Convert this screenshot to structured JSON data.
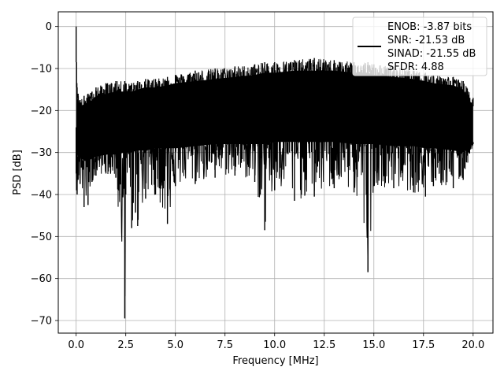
{
  "chart_data": {
    "type": "line",
    "title": "",
    "xlabel": "Frequency [MHz]",
    "ylabel": "PSD [dB]",
    "xlim": [
      -0.9,
      21.0
    ],
    "ylim": [
      -73.0,
      3.5
    ],
    "xticks": [
      "0.0",
      "2.5",
      "5.0",
      "7.5",
      "10.0",
      "12.5",
      "15.0",
      "17.5",
      "20.0"
    ],
    "yticks": [
      "0",
      "−10",
      "−20",
      "−30",
      "−40",
      "−50",
      "−60",
      "−70"
    ],
    "grid": true,
    "legend_position": "top-right",
    "legend_lines": [
      "ENOB: -3.87 bits",
      "SNR: -21.53 dB",
      "SINAD: -21.55 dB",
      "SFDR: 4.88"
    ],
    "series": [
      {
        "color": "#000000",
        "x": [
          0.0,
          0.02,
          0.05,
          0.1,
          0.2,
          0.4,
          0.6,
          0.8,
          1.0,
          1.5,
          2.0,
          2.45,
          2.5,
          2.8,
          3.1,
          3.5,
          4.0,
          4.6,
          5.0,
          6.0,
          7.0,
          8.0,
          9.0,
          9.5,
          10.0,
          11.0,
          12.0,
          13.0,
          14.0,
          14.7,
          15.0,
          16.0,
          17.0,
          17.6,
          18.0,
          19.0,
          19.5,
          20.0
        ],
        "upper": [
          0.0,
          -8.5,
          -14.5,
          -16.0,
          -17.5,
          -16.5,
          -16.0,
          -15.5,
          -14.5,
          -13.5,
          -13.0,
          -13.0,
          -13.5,
          -13.5,
          -13.0,
          -12.5,
          -12.5,
          -12.0,
          -11.5,
          -10.5,
          -10.0,
          -9.5,
          -9.0,
          -8.5,
          -8.5,
          -8.0,
          -7.5,
          -8.0,
          -8.5,
          -8.5,
          -9.0,
          -9.5,
          -10.5,
          -11.0,
          -11.5,
          -12.0,
          -13.0,
          -17.0
        ],
        "lower": [
          -35.0,
          -39.0,
          -40.0,
          -36.5,
          -37.5,
          -43.0,
          -42.5,
          -37.0,
          -35.5,
          -35.0,
          -36.0,
          -69.5,
          -40.0,
          -48.0,
          -47.5,
          -41.0,
          -40.0,
          -47.0,
          -38.0,
          -37.5,
          -36.0,
          -35.5,
          -37.0,
          -48.5,
          -39.0,
          -41.5,
          -40.5,
          -38.5,
          -39.5,
          -58.5,
          -38.0,
          -38.5,
          -39.5,
          -40.5,
          -38.0,
          -38.5,
          -36.5,
          -28.0
        ],
        "band_top": [
          -8.5,
          -14.5,
          -17.0,
          -18.0,
          -19.0,
          -18.5,
          -18.0,
          -17.5,
          -16.5,
          -16.0,
          -15.5,
          -15.5,
          -15.5,
          -15.5,
          -15.0,
          -14.5,
          -14.5,
          -14.0,
          -13.5,
          -13.0,
          -12.5,
          -12.0,
          -11.5,
          -11.0,
          -11.0,
          -10.5,
          -10.5,
          -10.5,
          -11.0,
          -11.0,
          -11.5,
          -12.0,
          -12.5,
          -13.0,
          -13.5,
          -14.0,
          -15.0,
          -19.0
        ],
        "band_bottom": [
          -24.0,
          -27.0,
          -30.0,
          -31.0,
          -31.0,
          -32.0,
          -32.0,
          -31.5,
          -31.0,
          -30.5,
          -30.5,
          -30.0,
          -30.0,
          -30.0,
          -29.5,
          -29.5,
          -29.0,
          -29.0,
          -29.0,
          -28.5,
          -28.0,
          -28.0,
          -28.0,
          -28.0,
          -27.5,
          -27.5,
          -27.5,
          -27.5,
          -28.0,
          -28.0,
          -28.0,
          -28.5,
          -28.5,
          -29.0,
          -29.0,
          -29.5,
          -30.0,
          -27.5
        ]
      }
    ]
  }
}
